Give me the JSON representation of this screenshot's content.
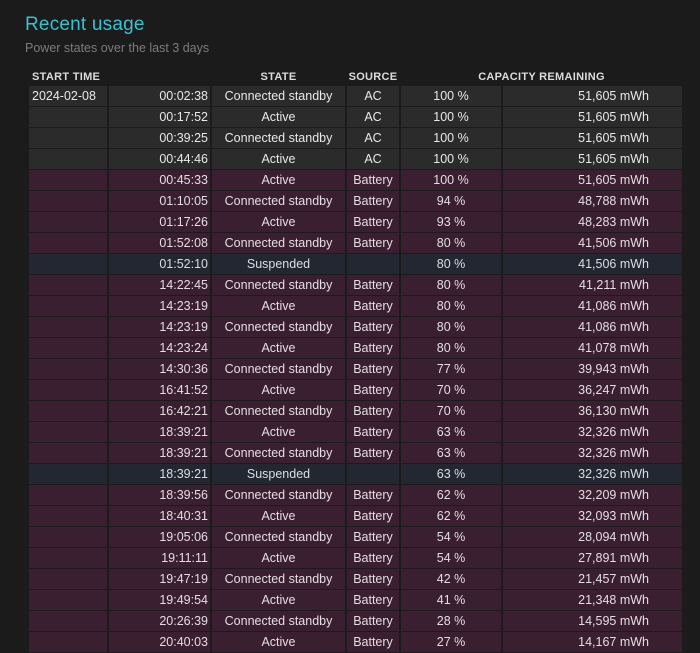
{
  "header": {
    "title": "Recent usage",
    "subtitle": "Power states over the last 3 days"
  },
  "table": {
    "columns": [
      "START TIME",
      "STATE",
      "SOURCE",
      "CAPACITY REMAINING"
    ],
    "rows": [
      {
        "date": "2024-02-08",
        "time": "00:02:38",
        "state": "Connected standby",
        "source": "AC",
        "percent": "100 %",
        "mwh": "51,605 mWh"
      },
      {
        "date": "",
        "time": "00:17:52",
        "state": "Active",
        "source": "AC",
        "percent": "100 %",
        "mwh": "51,605 mWh"
      },
      {
        "date": "",
        "time": "00:39:25",
        "state": "Connected standby",
        "source": "AC",
        "percent": "100 %",
        "mwh": "51,605 mWh"
      },
      {
        "date": "",
        "time": "00:44:46",
        "state": "Active",
        "source": "AC",
        "percent": "100 %",
        "mwh": "51,605 mWh"
      },
      {
        "date": "",
        "time": "00:45:33",
        "state": "Active",
        "source": "Battery",
        "percent": "100 %",
        "mwh": "51,605 mWh"
      },
      {
        "date": "",
        "time": "01:10:05",
        "state": "Connected standby",
        "source": "Battery",
        "percent": "94 %",
        "mwh": "48,788 mWh"
      },
      {
        "date": "",
        "time": "01:17:26",
        "state": "Active",
        "source": "Battery",
        "percent": "93 %",
        "mwh": "48,283 mWh"
      },
      {
        "date": "",
        "time": "01:52:08",
        "state": "Connected standby",
        "source": "Battery",
        "percent": "80 %",
        "mwh": "41,506 mWh"
      },
      {
        "date": "",
        "time": "01:52:10",
        "state": "Suspended",
        "source": "",
        "percent": "80 %",
        "mwh": "41,506 mWh"
      },
      {
        "date": "",
        "time": "14:22:45",
        "state": "Connected standby",
        "source": "Battery",
        "percent": "80 %",
        "mwh": "41,211 mWh"
      },
      {
        "date": "",
        "time": "14:23:19",
        "state": "Active",
        "source": "Battery",
        "percent": "80 %",
        "mwh": "41,086 mWh"
      },
      {
        "date": "",
        "time": "14:23:19",
        "state": "Connected standby",
        "source": "Battery",
        "percent": "80 %",
        "mwh": "41,086 mWh"
      },
      {
        "date": "",
        "time": "14:23:24",
        "state": "Active",
        "source": "Battery",
        "percent": "80 %",
        "mwh": "41,078 mWh"
      },
      {
        "date": "",
        "time": "14:30:36",
        "state": "Connected standby",
        "source": "Battery",
        "percent": "77 %",
        "mwh": "39,943 mWh"
      },
      {
        "date": "",
        "time": "16:41:52",
        "state": "Active",
        "source": "Battery",
        "percent": "70 %",
        "mwh": "36,247 mWh"
      },
      {
        "date": "",
        "time": "16:42:21",
        "state": "Connected standby",
        "source": "Battery",
        "percent": "70 %",
        "mwh": "36,130 mWh"
      },
      {
        "date": "",
        "time": "18:39:21",
        "state": "Active",
        "source": "Battery",
        "percent": "63 %",
        "mwh": "32,326 mWh"
      },
      {
        "date": "",
        "time": "18:39:21",
        "state": "Connected standby",
        "source": "Battery",
        "percent": "63 %",
        "mwh": "32,326 mWh"
      },
      {
        "date": "",
        "time": "18:39:21",
        "state": "Suspended",
        "source": "",
        "percent": "63 %",
        "mwh": "32,326 mWh"
      },
      {
        "date": "",
        "time": "18:39:56",
        "state": "Connected standby",
        "source": "Battery",
        "percent": "62 %",
        "mwh": "32,209 mWh"
      },
      {
        "date": "",
        "time": "18:40:31",
        "state": "Active",
        "source": "Battery",
        "percent": "62 %",
        "mwh": "32,093 mWh"
      },
      {
        "date": "",
        "time": "19:05:06",
        "state": "Connected standby",
        "source": "Battery",
        "percent": "54 %",
        "mwh": "28,094 mWh"
      },
      {
        "date": "",
        "time": "19:11:11",
        "state": "Active",
        "source": "Battery",
        "percent": "54 %",
        "mwh": "27,891 mWh"
      },
      {
        "date": "",
        "time": "19:47:19",
        "state": "Connected standby",
        "source": "Battery",
        "percent": "42 %",
        "mwh": "21,457 mWh"
      },
      {
        "date": "",
        "time": "19:49:54",
        "state": "Active",
        "source": "Battery",
        "percent": "41 %",
        "mwh": "21,348 mWh"
      },
      {
        "date": "",
        "time": "20:26:39",
        "state": "Connected standby",
        "source": "Battery",
        "percent": "28 %",
        "mwh": "14,595 mWh"
      },
      {
        "date": "",
        "time": "20:40:03",
        "state": "Active",
        "source": "Battery",
        "percent": "27 %",
        "mwh": "14,167 mWh"
      }
    ]
  }
}
